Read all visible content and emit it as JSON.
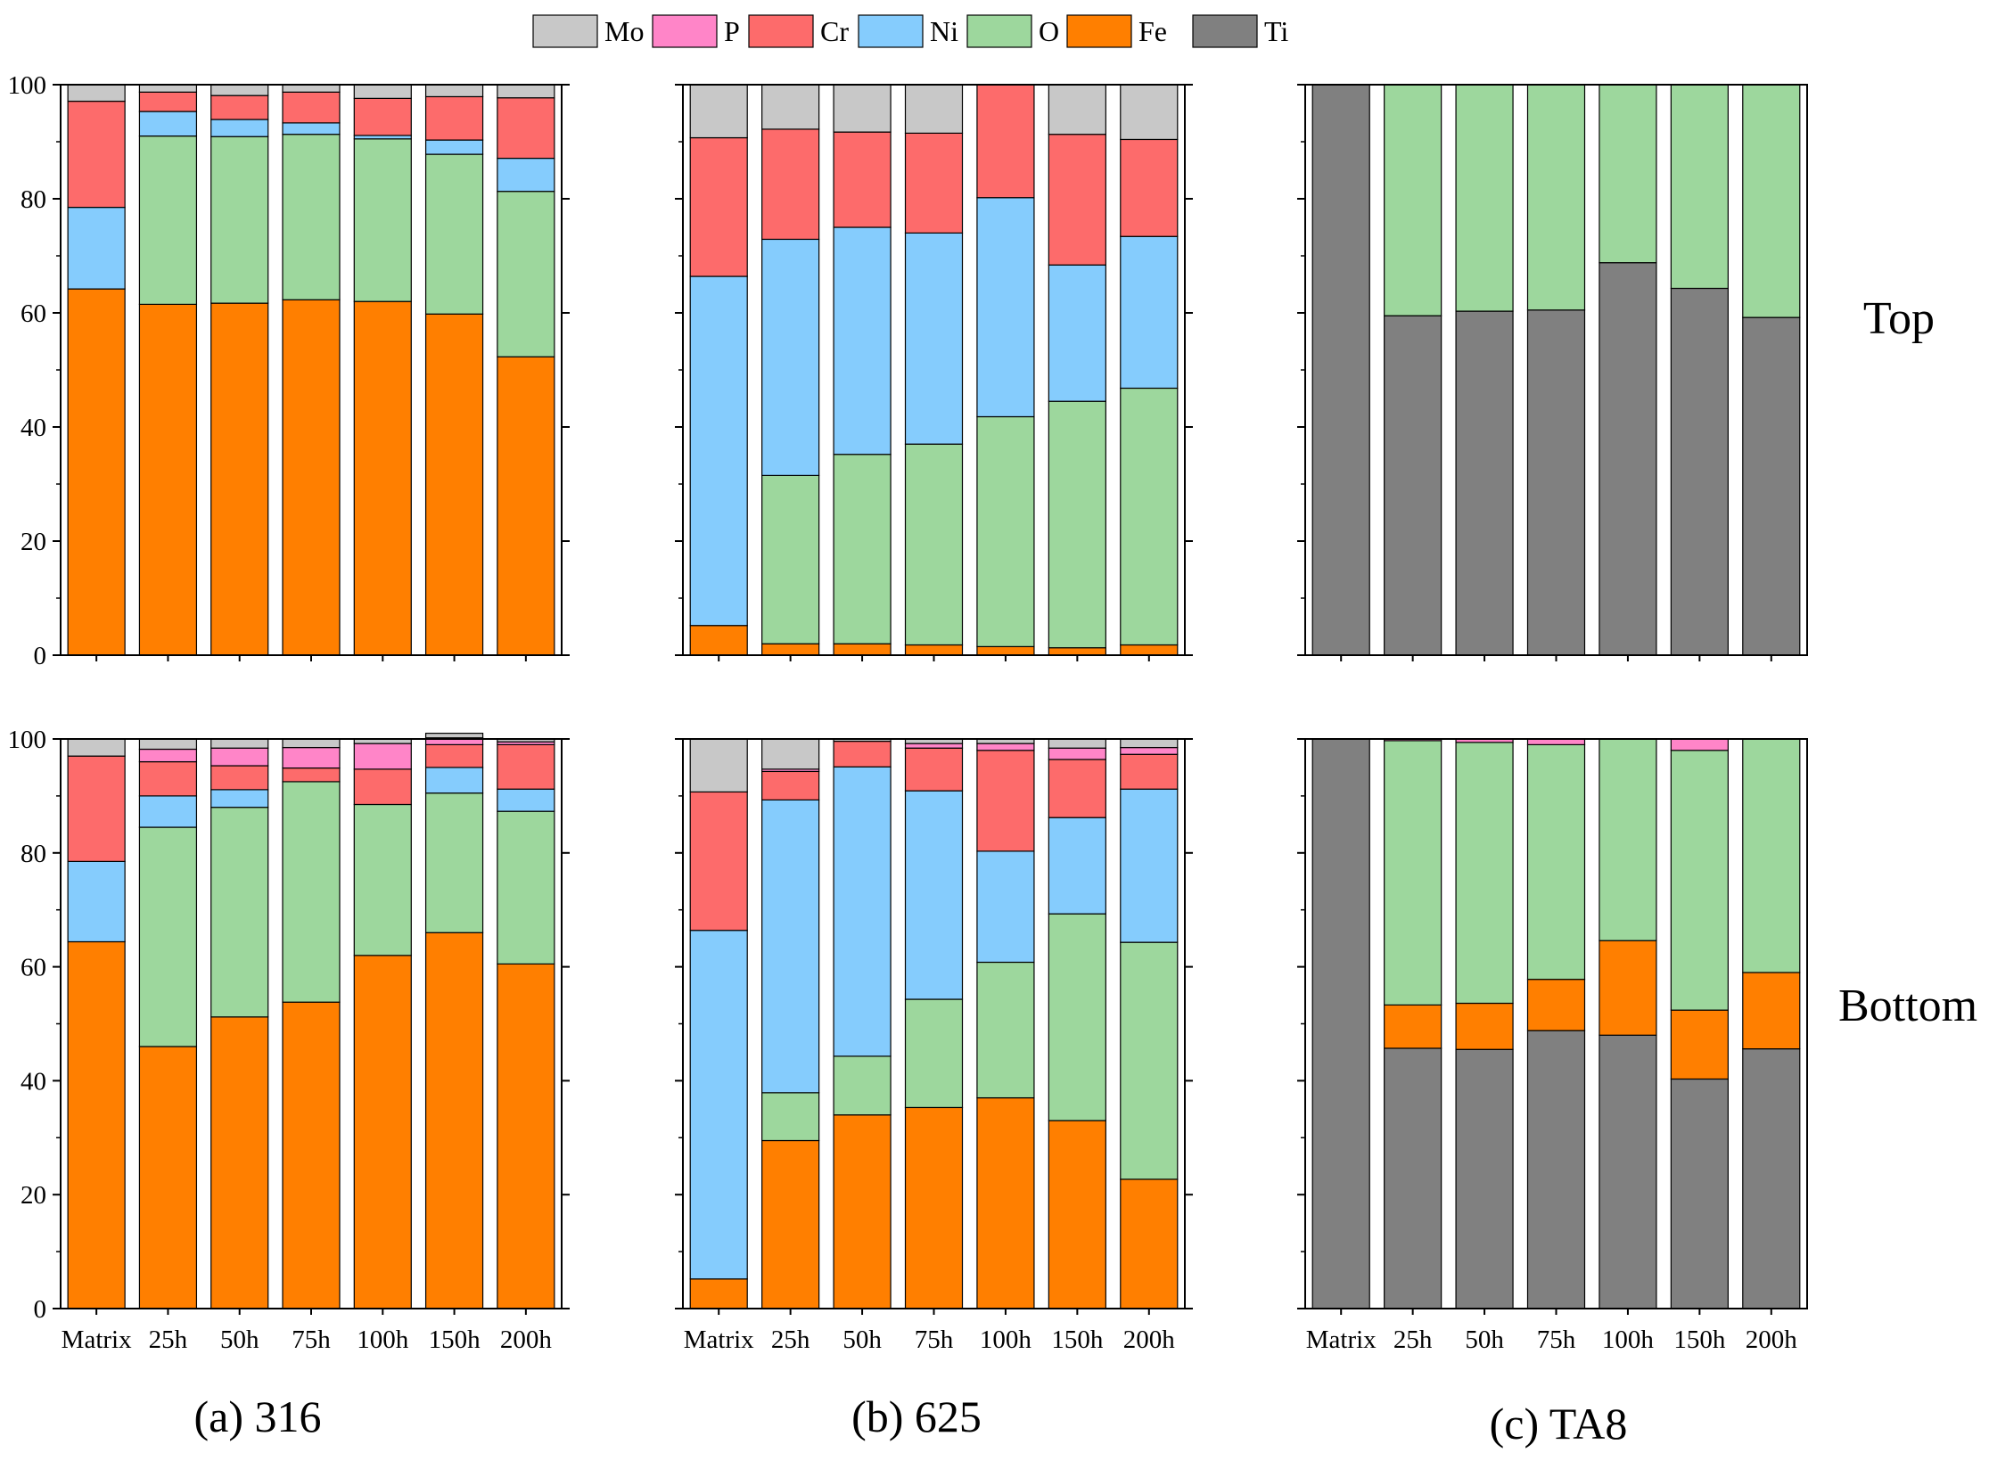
{
  "legend": [
    {
      "key": "Mo",
      "label": "Mo",
      "color": "#c8c8c8"
    },
    {
      "key": "P",
      "label": "P",
      "color": "#ff85c8"
    },
    {
      "key": "Cr",
      "label": "Cr",
      "color": "#fd6b6b"
    },
    {
      "key": "Ni",
      "label": "Ni",
      "color": "#85ccfd"
    },
    {
      "key": "O",
      "label": "O",
      "color": "#9dd79d"
    },
    {
      "key": "Fe",
      "label": "Fe",
      "color": "#ff7f00"
    },
    {
      "key": "Ti",
      "label": "Ti",
      "color": "#808080"
    }
  ],
  "row_labels": [
    "Top",
    "Bottom"
  ],
  "column_titles": [
    "(a) 316",
    "(b) 625",
    "(c) TA8"
  ],
  "chart_data": [
    {
      "type": "bar",
      "stacked": true,
      "material": "316",
      "position": "Top",
      "categories": [
        "Matrix",
        "25h",
        "50h",
        "75h",
        "100h",
        "150h",
        "200h"
      ],
      "ylim": [
        0,
        100
      ],
      "yticks": [
        0,
        20,
        40,
        60,
        80,
        100
      ],
      "stack_order": [
        "Fe",
        "O",
        "Ni",
        "Cr",
        "P",
        "Mo"
      ],
      "series": [
        {
          "name": "Fe",
          "values": [
            64.2,
            61.5,
            61.7,
            62.3,
            62.0,
            59.8,
            52.3
          ]
        },
        {
          "name": "O",
          "values": [
            0,
            29.5,
            29.2,
            29.0,
            28.5,
            28.0,
            29.0
          ]
        },
        {
          "name": "Ni",
          "values": [
            14.3,
            4.3,
            3.0,
            2.0,
            0.6,
            2.5,
            5.8
          ]
        },
        {
          "name": "Cr",
          "values": [
            18.6,
            3.4,
            4.2,
            5.4,
            6.5,
            7.6,
            10.6
          ]
        },
        {
          "name": "P",
          "values": [
            0,
            0,
            0,
            0,
            0,
            0,
            0
          ]
        },
        {
          "name": "Mo",
          "values": [
            2.9,
            1.3,
            1.9,
            1.3,
            2.4,
            2.1,
            2.3
          ]
        }
      ]
    },
    {
      "type": "bar",
      "stacked": true,
      "material": "625",
      "position": "Top",
      "categories": [
        "Matrix",
        "25h",
        "50h",
        "75h",
        "100h",
        "150h",
        "200h"
      ],
      "ylim": [
        0,
        100
      ],
      "yticks": [
        0,
        20,
        40,
        60,
        80,
        100
      ],
      "stack_order": [
        "Fe",
        "O",
        "Ni",
        "Cr",
        "P",
        "Mo"
      ],
      "series": [
        {
          "name": "Fe",
          "values": [
            5.2,
            2.0,
            2.0,
            1.8,
            1.5,
            1.3,
            1.8
          ]
        },
        {
          "name": "O",
          "values": [
            0,
            29.5,
            33.2,
            35.2,
            40.3,
            43.2,
            45.0
          ]
        },
        {
          "name": "Ni",
          "values": [
            61.2,
            41.4,
            39.8,
            37.0,
            38.4,
            23.9,
            26.6
          ]
        },
        {
          "name": "Cr",
          "values": [
            24.3,
            19.3,
            16.7,
            17.5,
            19.8,
            22.9,
            17.0
          ]
        },
        {
          "name": "P",
          "values": [
            0,
            0,
            0,
            0,
            0,
            0,
            0
          ]
        },
        {
          "name": "Mo",
          "values": [
            9.3,
            7.8,
            8.3,
            8.5,
            0,
            8.7,
            9.6
          ]
        }
      ]
    },
    {
      "type": "bar",
      "stacked": true,
      "material": "TA8",
      "position": "Top",
      "categories": [
        "Matrix",
        "25h",
        "50h",
        "75h",
        "100h",
        "150h",
        "200h"
      ],
      "ylim": [
        0,
        100
      ],
      "yticks": [
        0,
        20,
        40,
        60,
        80,
        100
      ],
      "stack_order": [
        "Ti",
        "Fe",
        "O",
        "P"
      ],
      "series": [
        {
          "name": "Ti",
          "values": [
            100,
            59.5,
            60.3,
            60.5,
            68.8,
            64.3,
            59.2
          ]
        },
        {
          "name": "Fe",
          "values": [
            0,
            0,
            0,
            0,
            0,
            0,
            0
          ]
        },
        {
          "name": "O",
          "values": [
            0,
            40.5,
            39.7,
            39.5,
            31.2,
            35.7,
            40.8
          ]
        },
        {
          "name": "P",
          "values": [
            0,
            0,
            0,
            0,
            0,
            0,
            0
          ]
        }
      ]
    },
    {
      "type": "bar",
      "stacked": true,
      "material": "316",
      "position": "Bottom",
      "categories": [
        "Matrix",
        "25h",
        "50h",
        "75h",
        "100h",
        "150h",
        "200h"
      ],
      "ylim": [
        0,
        100
      ],
      "yticks": [
        0,
        20,
        40,
        60,
        80,
        100
      ],
      "stack_order": [
        "Fe",
        "O",
        "Ni",
        "Cr",
        "P",
        "Mo"
      ],
      "series": [
        {
          "name": "Fe",
          "values": [
            64.4,
            46.0,
            51.2,
            53.8,
            62.0,
            66.0,
            60.5
          ]
        },
        {
          "name": "O",
          "values": [
            0,
            38.5,
            36.8,
            38.7,
            26.5,
            24.5,
            26.8
          ]
        },
        {
          "name": "Ni",
          "values": [
            14.1,
            5.5,
            3.1,
            0,
            0,
            4.5,
            3.9
          ]
        },
        {
          "name": "Cr",
          "values": [
            18.5,
            6.0,
            4.2,
            2.4,
            6.2,
            4.0,
            7.8
          ]
        },
        {
          "name": "P",
          "values": [
            0,
            2.2,
            3.1,
            3.6,
            4.5,
            1.2,
            0.5
          ]
        },
        {
          "name": "Mo",
          "values": [
            3.0,
            1.8,
            1.6,
            1.5,
            0.8,
            0.8,
            0.5
          ]
        }
      ]
    },
    {
      "type": "bar",
      "stacked": true,
      "material": "625",
      "position": "Bottom",
      "categories": [
        "Matrix",
        "25h",
        "50h",
        "75h",
        "100h",
        "150h",
        "200h"
      ],
      "ylim": [
        0,
        100
      ],
      "yticks": [
        0,
        20,
        40,
        60,
        80,
        100
      ],
      "stack_order": [
        "Fe",
        "O",
        "Ni",
        "Cr",
        "P",
        "Mo"
      ],
      "series": [
        {
          "name": "Fe",
          "values": [
            5.2,
            29.5,
            34.0,
            35.3,
            37.0,
            33.0,
            22.7
          ]
        },
        {
          "name": "O",
          "values": [
            0,
            8.4,
            10.3,
            19.0,
            23.8,
            36.3,
            41.6
          ]
        },
        {
          "name": "Ni",
          "values": [
            61.2,
            51.4,
            50.8,
            36.6,
            19.5,
            16.9,
            26.9
          ]
        },
        {
          "name": "Cr",
          "values": [
            24.3,
            5.0,
            4.5,
            7.5,
            17.7,
            10.2,
            6.1
          ]
        },
        {
          "name": "P",
          "values": [
            0,
            0.4,
            0,
            0.8,
            1.2,
            2.0,
            1.2
          ]
        },
        {
          "name": "Mo",
          "values": [
            9.3,
            5.3,
            0.4,
            0.8,
            0.8,
            1.6,
            1.5
          ]
        }
      ]
    },
    {
      "type": "bar",
      "stacked": true,
      "material": "TA8",
      "position": "Bottom",
      "categories": [
        "Matrix",
        "25h",
        "50h",
        "75h",
        "100h",
        "150h",
        "200h"
      ],
      "ylim": [
        0,
        100
      ],
      "yticks": [
        0,
        20,
        40,
        60,
        80,
        100
      ],
      "stack_order": [
        "Ti",
        "Fe",
        "O",
        "P"
      ],
      "series": [
        {
          "name": "Ti",
          "values": [
            100,
            45.7,
            45.5,
            48.8,
            48.0,
            40.3,
            45.6
          ]
        },
        {
          "name": "Fe",
          "values": [
            0,
            7.6,
            8.1,
            9.0,
            16.6,
            12.1,
            13.4
          ]
        },
        {
          "name": "O",
          "values": [
            0,
            46.4,
            45.8,
            41.2,
            35.4,
            45.6,
            41.0
          ]
        },
        {
          "name": "P",
          "values": [
            0,
            0.3,
            0.6,
            1.0,
            0,
            2.0,
            0
          ]
        }
      ]
    }
  ]
}
